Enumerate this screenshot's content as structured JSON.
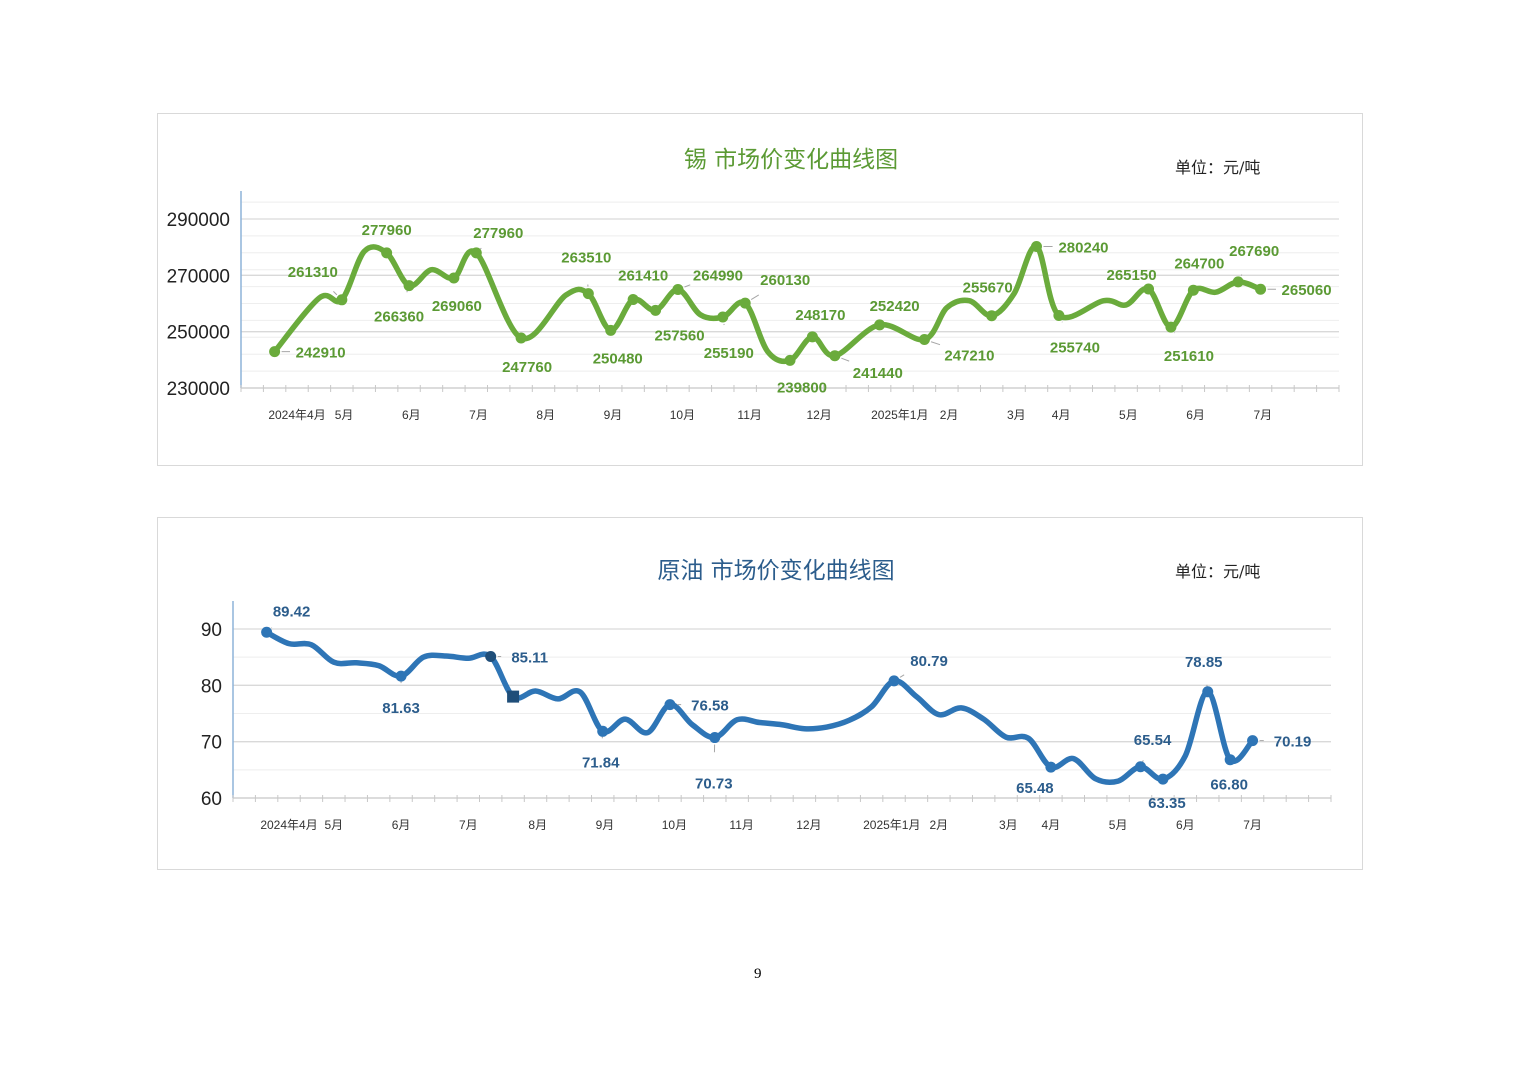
{
  "page_number": "9",
  "chart_data": [
    {
      "type": "line",
      "title": "锡 市场价变化曲线图",
      "unit": "单位：元/吨",
      "xlabel": "",
      "ylabel": "",
      "ylim": [
        230000,
        290000
      ],
      "yticks": [
        "290000",
        "270000",
        "250000",
        "230000"
      ],
      "ytick_values": [
        290000,
        270000,
        250000,
        230000
      ],
      "xlim": [
        0,
        49
      ],
      "grid": true,
      "color": "#6aab3c",
      "label_color": "#5b9a34",
      "x_labels": [
        {
          "label": "2024年4月",
          "at": 2.5
        },
        {
          "label": "5月",
          "at": 4.6
        },
        {
          "label": "6月",
          "at": 7.6
        },
        {
          "label": "7月",
          "at": 10.6
        },
        {
          "label": "8月",
          "at": 13.6
        },
        {
          "label": "9月",
          "at": 16.6
        },
        {
          "label": "10月",
          "at": 19.7
        },
        {
          "label": "11月",
          "at": 22.7
        },
        {
          "label": "12月",
          "at": 25.8
        },
        {
          "label": "2025年1月",
          "at": 29.4
        },
        {
          "label": "2月",
          "at": 31.6
        },
        {
          "label": "3月",
          "at": 34.6
        },
        {
          "label": "4月",
          "at": 36.6
        },
        {
          "label": "5月",
          "at": 39.6
        },
        {
          "label": "6月",
          "at": 42.6
        },
        {
          "label": "7月",
          "at": 45.6
        }
      ],
      "series": [
        {
          "name": "锡",
          "points": [
            {
              "x": 1,
              "y": 242910,
              "label": "242910"
            },
            {
              "x": 3,
              "y": 262000
            },
            {
              "x": 4,
              "y": 261310,
              "label": "261310"
            },
            {
              "x": 5,
              "y": 278500
            },
            {
              "x": 6,
              "y": 277960,
              "label": "277960"
            },
            {
              "x": 7,
              "y": 266360,
              "label": "266360"
            },
            {
              "x": 8,
              "y": 272000
            },
            {
              "x": 9,
              "y": 269060,
              "label": "269060"
            },
            {
              "x": 10,
              "y": 277960,
              "label": "277960"
            },
            {
              "x": 12,
              "y": 247760,
              "label": "247760"
            },
            {
              "x": 14,
              "y": 263000
            },
            {
              "x": 15,
              "y": 263510,
              "label": "263510"
            },
            {
              "x": 16,
              "y": 250480,
              "label": "250480"
            },
            {
              "x": 17,
              "y": 261410,
              "label": "261410"
            },
            {
              "x": 18,
              "y": 257560,
              "label": "257560"
            },
            {
              "x": 19,
              "y": 264990,
              "label": "264990"
            },
            {
              "x": 20,
              "y": 256000
            },
            {
              "x": 21,
              "y": 255190,
              "label": "255190"
            },
            {
              "x": 22,
              "y": 260130,
              "label": "260130"
            },
            {
              "x": 23,
              "y": 243000
            },
            {
              "x": 24,
              "y": 239800,
              "label": "239800"
            },
            {
              "x": 25,
              "y": 248170,
              "label": "248170"
            },
            {
              "x": 26,
              "y": 241440,
              "label": "241440"
            },
            {
              "x": 28,
              "y": 252420,
              "label": "252420"
            },
            {
              "x": 30,
              "y": 247210,
              "label": "247210"
            },
            {
              "x": 31,
              "y": 258500
            },
            {
              "x": 32,
              "y": 261000
            },
            {
              "x": 33,
              "y": 255670,
              "label": "255670"
            },
            {
              "x": 34,
              "y": 263500
            },
            {
              "x": 35,
              "y": 280240,
              "label": "280240"
            },
            {
              "x": 36,
              "y": 255740,
              "label": "255740"
            },
            {
              "x": 38,
              "y": 261000
            },
            {
              "x": 39,
              "y": 259500
            },
            {
              "x": 40,
              "y": 265150,
              "label": "265150"
            },
            {
              "x": 41,
              "y": 251610,
              "label": "251610"
            },
            {
              "x": 42,
              "y": 264700,
              "label": "264700"
            },
            {
              "x": 43,
              "y": 264000
            },
            {
              "x": 44,
              "y": 267690,
              "label": "267690"
            },
            {
              "x": 45,
              "y": 265060,
              "label": "265060"
            }
          ]
        }
      ]
    },
    {
      "type": "line",
      "title": "原油 市场价变化曲线图",
      "unit": "单位：元/吨",
      "xlabel": "",
      "ylabel": "",
      "ylim": [
        60,
        90
      ],
      "yticks": [
        "90",
        "80",
        "70",
        "60"
      ],
      "ytick_values": [
        90,
        80,
        70,
        60
      ],
      "xlim": [
        0,
        49
      ],
      "grid": true,
      "color": "#2e75b6",
      "label_color": "#2c5d8c",
      "marker_dark": "#1f4e79",
      "x_labels": [
        {
          "label": "2024年4月",
          "at": 2.5
        },
        {
          "label": "5月",
          "at": 4.5
        },
        {
          "label": "6月",
          "at": 7.5
        },
        {
          "label": "7月",
          "at": 10.5
        },
        {
          "label": "8月",
          "at": 13.6
        },
        {
          "label": "9月",
          "at": 16.6
        },
        {
          "label": "10月",
          "at": 19.7
        },
        {
          "label": "11月",
          "at": 22.7
        },
        {
          "label": "12月",
          "at": 25.7
        },
        {
          "label": "2025年1月",
          "at": 29.4
        },
        {
          "label": "2月",
          "at": 31.5
        },
        {
          "label": "3月",
          "at": 34.6
        },
        {
          "label": "4月",
          "at": 36.5
        },
        {
          "label": "5月",
          "at": 39.5
        },
        {
          "label": "6月",
          "at": 42.5
        },
        {
          "label": "7月",
          "at": 45.5
        }
      ],
      "series": [
        {
          "name": "原油",
          "points": [
            {
              "x": 1,
              "y": 89.42,
              "label": "89.42"
            },
            {
              "x": 2,
              "y": 87.4
            },
            {
              "x": 3,
              "y": 87.2
            },
            {
              "x": 4,
              "y": 84.1
            },
            {
              "x": 5,
              "y": 84.0
            },
            {
              "x": 6,
              "y": 83.5
            },
            {
              "x": 7,
              "y": 81.63,
              "label": "81.63"
            },
            {
              "x": 8,
              "y": 85.0
            },
            {
              "x": 9,
              "y": 85.2
            },
            {
              "x": 10,
              "y": 84.8
            },
            {
              "x": 11,
              "y": 85.11,
              "label": "85.11",
              "marker": "dark"
            },
            {
              "x": 12,
              "y": 78.0,
              "marker": "square"
            },
            {
              "x": 13,
              "y": 79.0
            },
            {
              "x": 14,
              "y": 77.6
            },
            {
              "x": 15,
              "y": 78.8
            },
            {
              "x": 16,
              "y": 71.84,
              "label": "71.84"
            },
            {
              "x": 17,
              "y": 74.0
            },
            {
              "x": 18,
              "y": 71.6
            },
            {
              "x": 19,
              "y": 76.58,
              "label": "76.58"
            },
            {
              "x": 20,
              "y": 73.0
            },
            {
              "x": 21,
              "y": 70.73,
              "label": "70.73"
            },
            {
              "x": 22,
              "y": 73.9
            },
            {
              "x": 23,
              "y": 73.4
            },
            {
              "x": 24,
              "y": 73.0
            },
            {
              "x": 25,
              "y": 72.3
            },
            {
              "x": 26,
              "y": 72.6
            },
            {
              "x": 27,
              "y": 73.8
            },
            {
              "x": 28,
              "y": 76.2
            },
            {
              "x": 29,
              "y": 80.79,
              "label": "80.79"
            },
            {
              "x": 30,
              "y": 78.0
            },
            {
              "x": 31,
              "y": 74.8
            },
            {
              "x": 32,
              "y": 76.0
            },
            {
              "x": 33,
              "y": 74.0
            },
            {
              "x": 34,
              "y": 70.8
            },
            {
              "x": 35,
              "y": 70.6
            },
            {
              "x": 36,
              "y": 65.48,
              "label": "65.48"
            },
            {
              "x": 37,
              "y": 67.0
            },
            {
              "x": 38,
              "y": 63.4
            },
            {
              "x": 39,
              "y": 63.0
            },
            {
              "x": 40,
              "y": 65.54,
              "label": "65.54"
            },
            {
              "x": 41,
              "y": 63.35,
              "label": "63.35"
            },
            {
              "x": 42,
              "y": 67.5
            },
            {
              "x": 43,
              "y": 78.85,
              "label": "78.85"
            },
            {
              "x": 44,
              "y": 66.8,
              "label": "66.80"
            },
            {
              "x": 45,
              "y": 70.19,
              "label": "70.19"
            }
          ]
        }
      ]
    }
  ]
}
